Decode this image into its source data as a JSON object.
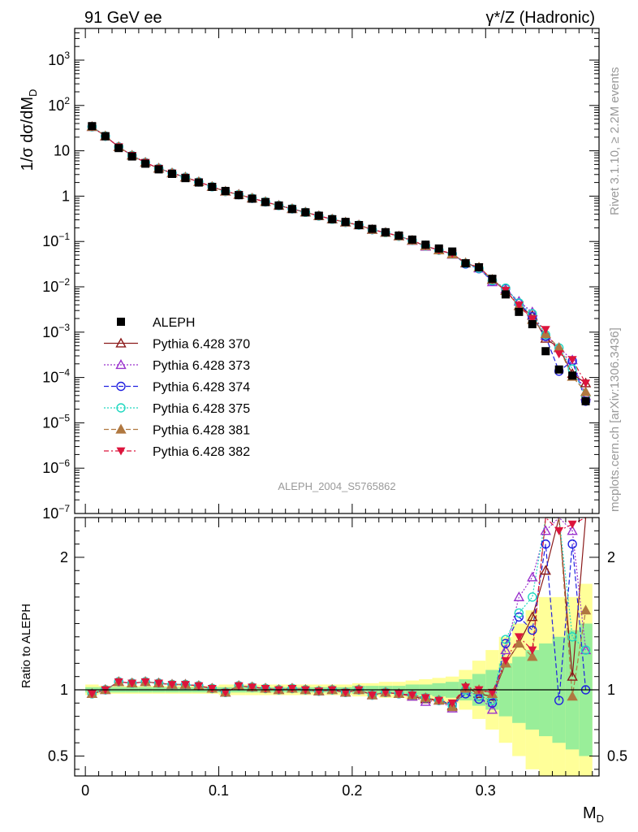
{
  "header": {
    "left": "91 GeV ee",
    "right": "γ*/Z (Hadronic)"
  },
  "side_labels": {
    "rivet": "Rivet 3.1.10, ≥ 2.2M events",
    "mcplots": "mcplots.cern.ch [arXiv:1306.3436]"
  },
  "analysis_id": "ALEPH_2004_S5765862",
  "colors": {
    "ALEPH": "#000000",
    "p370": "#8b1a1a",
    "p373": "#9a32cd",
    "p374": "#2020e0",
    "p375": "#20d8c0",
    "p381": "#b07840",
    "p382": "#dc143c",
    "band_outer": "#ffff99",
    "band_inner": "#99ee99"
  },
  "chart_data": [
    {
      "type": "scatter",
      "panel": "main",
      "ylabel": "1/σ  dσ/dM_D",
      "yscale": "log",
      "ylim": [
        1e-07,
        5000
      ],
      "xlim": [
        -0.008,
        0.385
      ],
      "yticks": [
        {
          "v": 1e-07,
          "base": "10",
          "exp": "−7"
        },
        {
          "v": 1e-06,
          "base": "10",
          "exp": "−6"
        },
        {
          "v": 1e-05,
          "base": "10",
          "exp": "−5"
        },
        {
          "v": 0.0001,
          "base": "10",
          "exp": "−4"
        },
        {
          "v": 0.001,
          "base": "10",
          "exp": "−3"
        },
        {
          "v": 0.01,
          "base": "10",
          "exp": "−2"
        },
        {
          "v": 0.1,
          "base": "10",
          "exp": "−1"
        },
        {
          "v": 1,
          "base": "1",
          "exp": ""
        },
        {
          "v": 10,
          "base": "10",
          "exp": ""
        },
        {
          "v": 100,
          "base": "10",
          "exp": "2"
        },
        {
          "v": 1000,
          "base": "10",
          "exp": "3"
        }
      ],
      "x": [
        0.005,
        0.015,
        0.025,
        0.035,
        0.045,
        0.055,
        0.065,
        0.075,
        0.085,
        0.095,
        0.105,
        0.115,
        0.125,
        0.135,
        0.145,
        0.155,
        0.165,
        0.175,
        0.185,
        0.195,
        0.205,
        0.215,
        0.225,
        0.235,
        0.245,
        0.255,
        0.265,
        0.275,
        0.285,
        0.295,
        0.305,
        0.315,
        0.325,
        0.335,
        0.345,
        0.355,
        0.365,
        0.375
      ],
      "aleph": [
        35,
        21,
        11.5,
        7.5,
        5.2,
        3.9,
        3.1,
        2.5,
        2.0,
        1.6,
        1.3,
        1.05,
        0.88,
        0.74,
        0.62,
        0.52,
        0.44,
        0.37,
        0.31,
        0.27,
        0.23,
        0.19,
        0.16,
        0.135,
        0.11,
        0.085,
        0.07,
        0.06,
        0.033,
        0.027,
        0.015,
        0.0068,
        0.0028,
        0.0015,
        0.00038,
        0.00015,
        0.00011,
        3e-05
      ],
      "series": [
        {
          "name": "ALEPH",
          "key": "ALEPH",
          "marker": "square",
          "dash": ""
        },
        {
          "name": "Pythia 6.428 370",
          "key": "p370",
          "marker": "triangle-up-open",
          "dash": ""
        },
        {
          "name": "Pythia 6.428 373",
          "key": "p373",
          "marker": "triangle-up-open",
          "dash": "2,2"
        },
        {
          "name": "Pythia 6.428 374",
          "key": "p374",
          "marker": "circle-open",
          "dash": "6,3"
        },
        {
          "name": "Pythia 6.428 375",
          "key": "p375",
          "marker": "circle-open",
          "dash": "2,2"
        },
        {
          "name": "Pythia 6.428 381",
          "key": "p381",
          "marker": "triangle-up",
          "dash": "6,3"
        },
        {
          "name": "Pythia 6.428 382",
          "key": "p382",
          "marker": "triangle-down",
          "dash": "6,3,2,3"
        }
      ]
    },
    {
      "type": "line",
      "panel": "ratio",
      "ylabel": "Ratio to ALEPH",
      "xlabel": "M_D",
      "ylim": [
        0.35,
        2.3
      ],
      "yticks": [
        0.5,
        1,
        2
      ],
      "xticks": [
        0,
        0.1,
        0.2,
        0.3
      ],
      "x": [
        0.005,
        0.015,
        0.025,
        0.035,
        0.045,
        0.055,
        0.065,
        0.075,
        0.085,
        0.095,
        0.105,
        0.115,
        0.125,
        0.135,
        0.145,
        0.155,
        0.165,
        0.175,
        0.185,
        0.195,
        0.205,
        0.215,
        0.225,
        0.235,
        0.245,
        0.255,
        0.265,
        0.275,
        0.285,
        0.295,
        0.305,
        0.315,
        0.325,
        0.335,
        0.345,
        0.355,
        0.365,
        0.375
      ],
      "band_outer": [
        0.04,
        0.03,
        0.03,
        0.03,
        0.03,
        0.03,
        0.03,
        0.03,
        0.03,
        0.03,
        0.04,
        0.04,
        0.04,
        0.04,
        0.04,
        0.04,
        0.04,
        0.04,
        0.04,
        0.04,
        0.05,
        0.05,
        0.06,
        0.06,
        0.07,
        0.08,
        0.09,
        0.1,
        0.15,
        0.22,
        0.3,
        0.4,
        0.5,
        0.6,
        0.7,
        0.7,
        0.7,
        0.8
      ],
      "band_inner": [
        0.02,
        0.02,
        0.02,
        0.02,
        0.02,
        0.02,
        0.02,
        0.02,
        0.02,
        0.02,
        0.02,
        0.02,
        0.02,
        0.02,
        0.02,
        0.02,
        0.02,
        0.02,
        0.02,
        0.02,
        0.03,
        0.03,
        0.03,
        0.03,
        0.04,
        0.04,
        0.05,
        0.06,
        0.08,
        0.12,
        0.15,
        0.2,
        0.25,
        0.3,
        0.35,
        0.4,
        0.45,
        0.5
      ],
      "ratios": {
        "p370": [
          0.97,
          1.0,
          1.06,
          1.05,
          1.06,
          1.05,
          1.04,
          1.04,
          1.03,
          1.01,
          0.98,
          1.03,
          1.02,
          1.01,
          1.0,
          1.01,
          1.0,
          0.99,
          1.0,
          0.98,
          1.0,
          0.96,
          0.98,
          0.97,
          0.95,
          0.93,
          0.92,
          0.88,
          1.02,
          0.97,
          0.95,
          1.2,
          1.35,
          1.55,
          1.9,
          3.0,
          1.1,
          2.5
        ],
        "p373": [
          0.97,
          1.0,
          1.06,
          1.05,
          1.06,
          1.05,
          1.04,
          1.04,
          1.03,
          1.01,
          0.98,
          1.03,
          1.02,
          1.01,
          1.0,
          1.01,
          1.0,
          0.99,
          1.0,
          0.98,
          1.0,
          0.96,
          0.98,
          0.97,
          0.95,
          0.91,
          0.92,
          0.86,
          1.0,
          0.95,
          0.85,
          1.3,
          1.7,
          1.85,
          2.2,
          3.0,
          2.2,
          1.3
        ],
        "p374": [
          0.97,
          1.0,
          1.06,
          1.05,
          1.06,
          1.05,
          1.04,
          1.04,
          1.03,
          1.01,
          0.98,
          1.03,
          1.02,
          1.01,
          1.0,
          1.01,
          1.0,
          0.99,
          1.0,
          0.98,
          1.0,
          0.96,
          0.98,
          0.97,
          0.96,
          0.94,
          0.92,
          0.89,
          0.97,
          0.93,
          0.9,
          1.35,
          1.55,
          1.45,
          2.1,
          0.92,
          2.1,
          1.0
        ],
        "p375": [
          0.97,
          1.0,
          1.06,
          1.05,
          1.06,
          1.05,
          1.04,
          1.04,
          1.03,
          1.01,
          0.98,
          1.03,
          1.02,
          1.01,
          1.0,
          1.01,
          1.0,
          0.99,
          1.0,
          0.98,
          1.0,
          0.96,
          0.98,
          0.97,
          0.96,
          0.94,
          0.92,
          0.88,
          1.0,
          0.95,
          0.92,
          1.38,
          1.58,
          1.7,
          2.3,
          3.0,
          1.4,
          1.3
        ],
        "p381": [
          0.97,
          1.0,
          1.06,
          1.05,
          1.06,
          1.05,
          1.04,
          1.04,
          1.03,
          1.01,
          0.98,
          1.03,
          1.02,
          1.01,
          1.0,
          1.01,
          1.0,
          0.99,
          1.0,
          0.98,
          1.0,
          0.96,
          0.98,
          0.97,
          0.96,
          0.94,
          0.92,
          0.87,
          1.01,
          1.0,
          0.97,
          1.2,
          1.35,
          1.25,
          2.4,
          3.0,
          0.95,
          1.6
        ],
        "p382": [
          0.97,
          1.0,
          1.06,
          1.05,
          1.06,
          1.05,
          1.04,
          1.04,
          1.03,
          1.01,
          0.98,
          1.03,
          1.02,
          1.01,
          1.0,
          1.01,
          1.0,
          0.99,
          1.0,
          0.98,
          1.0,
          0.96,
          0.98,
          0.97,
          0.96,
          0.94,
          0.92,
          0.9,
          1.02,
          1.0,
          0.98,
          1.22,
          1.4,
          1.3,
          3.0,
          2.2,
          2.25,
          2.5
        ]
      }
    }
  ]
}
